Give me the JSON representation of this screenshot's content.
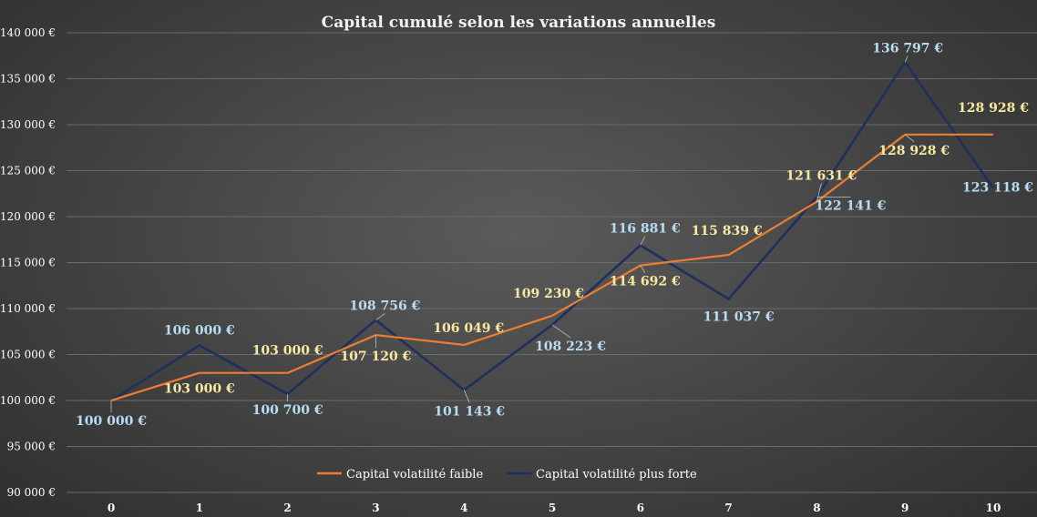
{
  "chart_data": {
    "type": "line",
    "title": "Capital cumulé selon les variations annuelles",
    "x": [
      0,
      1,
      2,
      3,
      4,
      5,
      6,
      7,
      8,
      9,
      10
    ],
    "ylim": [
      90000,
      140000
    ],
    "yticks": [
      "90 000 €",
      "95 000 €",
      "100 000 €",
      "105 000 €",
      "110 000 €",
      "115 000 €",
      "120 000 €",
      "125 000 €",
      "130 000 €",
      "135 000 €",
      "140 000 €"
    ],
    "grid": true,
    "legend_position": "bottom",
    "series": [
      {
        "name": "Capital volatilité faible",
        "color": "#ed7d31",
        "values": [
          100000,
          103000,
          103000,
          107120,
          106049,
          109230,
          114692,
          115839,
          121631,
          128928,
          128928
        ],
        "labels": [
          "100 000 €",
          "103 000 €",
          "103 000 €",
          "107 120 €",
          "106 049 €",
          "109 230 €",
          "114 692 €",
          "115 839 €",
          "121 631 €",
          "128 928 €",
          "128 928 €"
        ]
      },
      {
        "name": "Capital volatilité plus forte",
        "color": "#1f2f5e",
        "values": [
          100000,
          106000,
          100700,
          108756,
          101143,
          108223,
          116881,
          111037,
          122141,
          136797,
          123118
        ],
        "labels": [
          "100 000 €",
          "106 000 €",
          "100 700 €",
          "108 756 €",
          "101 143 €",
          "108 223 €",
          "116 881 €",
          "111 037 €",
          "122 141 €",
          "136 797 €",
          "123 118 €"
        ]
      }
    ]
  }
}
